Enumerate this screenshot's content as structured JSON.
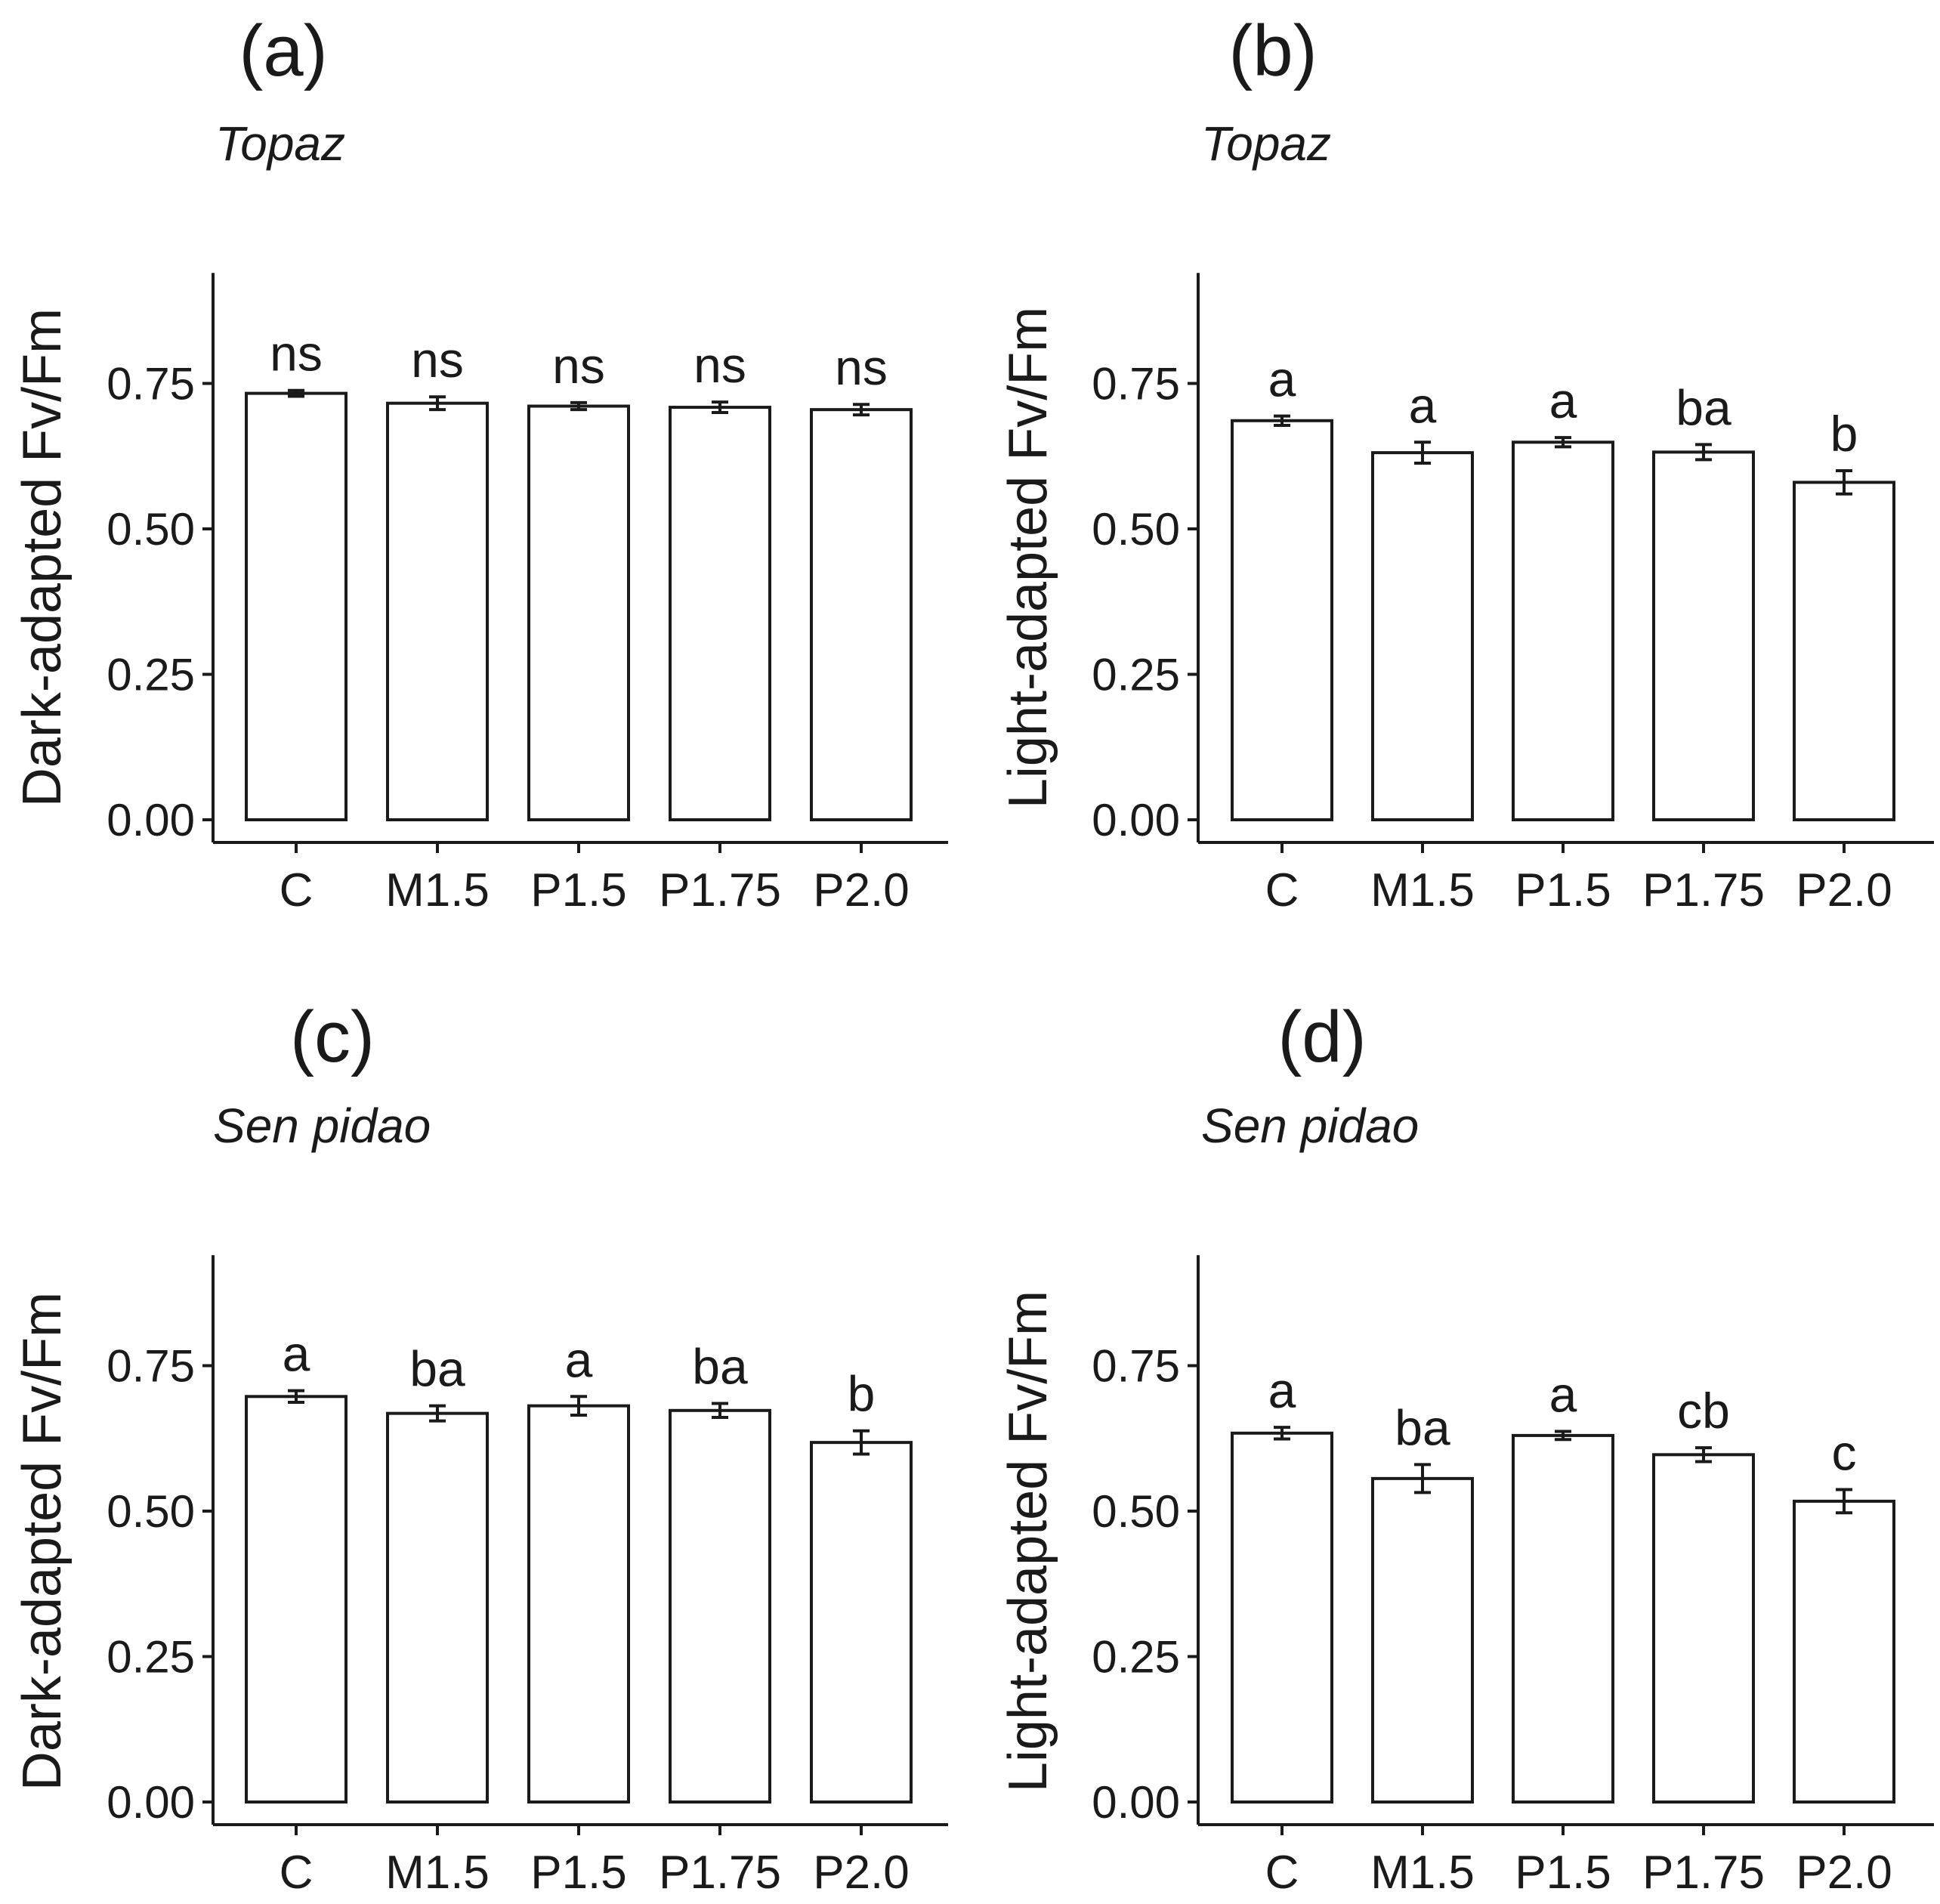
{
  "figure": {
    "categories": [
      "C",
      "M1.5",
      "P1.5",
      "P1.75",
      "P2.0"
    ],
    "yticks": [
      "0.00",
      "0.25",
      "0.50",
      "0.75"
    ]
  },
  "chart_data": [
    {
      "type": "bar",
      "panel": "(a)",
      "title": "Topaz",
      "ylabel": "Dark-adapted Fv/Fm",
      "xlabel": "",
      "categories": [
        "C",
        "M1.5",
        "P1.5",
        "P1.75",
        "P2.0"
      ],
      "values": [
        0.733,
        0.716,
        0.711,
        0.709,
        0.705
      ],
      "errors": [
        0.005,
        0.011,
        0.006,
        0.009,
        0.009
      ],
      "letters": [
        "ns",
        "ns",
        "ns",
        "ns",
        "ns"
      ],
      "ylim": [
        0,
        0.94
      ],
      "yticks": [
        0,
        0.25,
        0.5,
        0.75
      ]
    },
    {
      "type": "bar",
      "panel": "(b)",
      "title": "Topaz",
      "ylabel": "Light-adapted Fv/Fm",
      "xlabel": "",
      "categories": [
        "C",
        "M1.5",
        "P1.5",
        "P1.75",
        "P2.0"
      ],
      "values": [
        0.686,
        0.631,
        0.649,
        0.632,
        0.58
      ],
      "errors": [
        0.008,
        0.018,
        0.008,
        0.013,
        0.02
      ],
      "letters": [
        "a",
        "a",
        "a",
        "ba",
        "b"
      ],
      "ylim": [
        0,
        0.94
      ],
      "yticks": [
        0,
        0.25,
        0.5,
        0.75
      ]
    },
    {
      "type": "bar",
      "panel": "(c)",
      "title": "Sen pidao",
      "ylabel": "Dark-adapted Fv/Fm",
      "xlabel": "",
      "categories": [
        "C",
        "M1.5",
        "P1.5",
        "P1.75",
        "P2.0"
      ],
      "values": [
        0.697,
        0.668,
        0.681,
        0.673,
        0.618
      ],
      "errors": [
        0.01,
        0.013,
        0.016,
        0.012,
        0.02
      ],
      "letters": [
        "a",
        "ba",
        "a",
        "ba",
        "b"
      ],
      "ylim": [
        0,
        0.94
      ],
      "yticks": [
        0,
        0.25,
        0.5,
        0.75
      ]
    },
    {
      "type": "bar",
      "panel": "(d)",
      "title": "Sen pidao",
      "ylabel": "Light-adapted Fv/Fm",
      "xlabel": "",
      "categories": [
        "C",
        "M1.5",
        "P1.5",
        "P1.75",
        "P2.0"
      ],
      "values": [
        0.634,
        0.556,
        0.63,
        0.597,
        0.517
      ],
      "errors": [
        0.01,
        0.024,
        0.007,
        0.012,
        0.02
      ],
      "letters": [
        "a",
        "ba",
        "a",
        "cb",
        "c"
      ],
      "ylim": [
        0,
        0.94
      ],
      "yticks": [
        0,
        0.25,
        0.5,
        0.75
      ]
    }
  ]
}
